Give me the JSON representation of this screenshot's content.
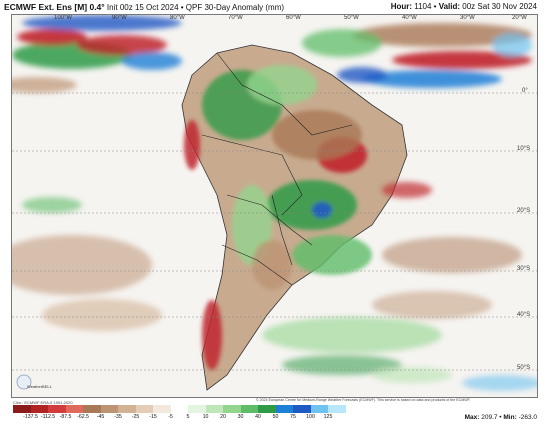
{
  "header": {
    "model": "ECMWF Ext. Ens [M] 0.4°",
    "init": "Init 00z 15 Oct 2024",
    "field": "QPF 30-Day Anomaly (mm)",
    "hour_label": "Hour:",
    "hour_value": "1104",
    "valid_label": "Valid:",
    "valid_value": "00z Sat 30 Nov 2024"
  },
  "map": {
    "region": "South America",
    "lon_labels": [
      "100°W",
      "90°W",
      "80°W",
      "70°W",
      "60°W",
      "50°W",
      "40°W",
      "30°W",
      "20°W"
    ],
    "lat_labels": [
      "0°",
      "10°S",
      "20°S",
      "30°S",
      "40°S",
      "50°S"
    ],
    "anomaly_colors": {
      "wet": "#2e9b48",
      "wet_strong": "#1f77d0",
      "dry": "#b07a58",
      "dry_strong": "#c0262d"
    }
  },
  "colorbar": {
    "ticks": [
      "-137.5",
      "-112.5",
      "-87.5",
      "-62.5",
      "-45",
      "-35",
      "-25",
      "-15",
      "-5",
      "5",
      "10",
      "20",
      "30",
      "40",
      "50",
      "75",
      "100",
      "125"
    ],
    "colors": [
      "#8b1a1a",
      "#b22424",
      "#d23c3c",
      "#e06a5a",
      "#a97856",
      "#bd9474",
      "#d2b294",
      "#e4cdb6",
      "#f2e8de",
      "#ffffff",
      "#e3f4e0",
      "#bfe6b8",
      "#93d58d",
      "#5fbd69",
      "#2e9b48",
      "#1e7fd6",
      "#1f59c4",
      "#6fc3f0",
      "#b8e7fb"
    ],
    "clim_note": "Clim.: ECMWF ERA-5 1991-2020"
  },
  "stats": {
    "max_label": "Max:",
    "max_value": "209.7",
    "min_label": "Min:",
    "min_value": "-263.0"
  },
  "credits": "© 2024 European Centre for Medium-Range Weather Forecasts (ECMWF). This service is based on data and products of the ECMWF.",
  "logo": {
    "text": "WeatherBELL"
  }
}
